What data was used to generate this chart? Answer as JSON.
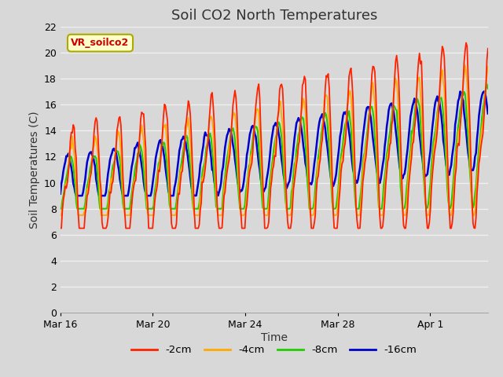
{
  "title": "Soil CO2 North Temperatures",
  "xlabel": "Time",
  "ylabel": "Soil Temperatures (C)",
  "ylim": [
    0,
    22
  ],
  "yticks": [
    0,
    2,
    4,
    6,
    8,
    10,
    12,
    14,
    16,
    18,
    20,
    22
  ],
  "xtick_labels": [
    "Mar 16",
    "Mar 20",
    "Mar 24",
    "Mar 28",
    "Apr 1"
  ],
  "xtick_positions": [
    0,
    4,
    8,
    12,
    16
  ],
  "xlim": [
    0,
    18.5
  ],
  "background_color": "#d8d8d8",
  "plot_bg_color": "#d8d8d8",
  "grid_color": "#f0f0f0",
  "line_colors": {
    "-2cm": "#ff2200",
    "-4cm": "#ffaa00",
    "-8cm": "#22cc00",
    "-16cm": "#0000cc"
  },
  "legend_label": "VR_soilco2",
  "legend_bg": "#ffffcc",
  "legend_border": "#aaaa00",
  "legend_text_color": "#cc0000",
  "title_fontsize": 13,
  "axis_label_fontsize": 10,
  "tick_fontsize": 9,
  "n_points": 432,
  "n_days": 18.5,
  "period_days": 1.0,
  "seed": 17
}
